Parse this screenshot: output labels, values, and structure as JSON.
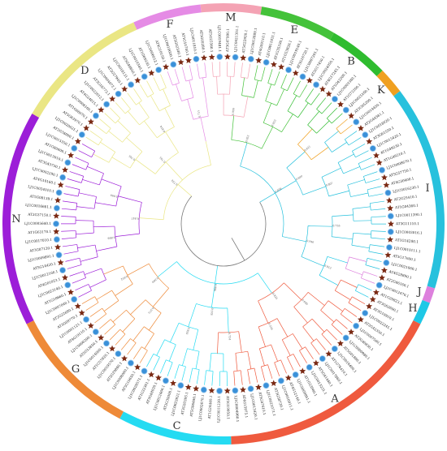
{
  "groups": [
    {
      "letter": "M",
      "color": "#f4a3b4",
      "start": 354,
      "end": 10
    },
    {
      "letter": "E",
      "color": "#44c23a",
      "start": 10,
      "end": 30
    },
    {
      "letter": "B",
      "color": "#2fbc2f",
      "start": 30,
      "end": 46
    },
    {
      "letter": "K",
      "color": "#f0a020",
      "start": 46,
      "end": 53
    },
    {
      "letter": "I",
      "color": "#27c1dd",
      "start": 53,
      "end": 107
    },
    {
      "letter": "J",
      "color": "#dd80dd",
      "start": 107,
      "end": 111
    },
    {
      "letter": "H",
      "color": "#1ec8e6",
      "start": 111,
      "end": 117
    },
    {
      "letter": "A",
      "color": "#ef5a3e",
      "start": 117,
      "end": 178
    },
    {
      "letter": "C",
      "color": "#25dbf2",
      "start": 178,
      "end": 208
    },
    {
      "letter": "G",
      "color": "#ee8a38",
      "start": 208,
      "end": 243
    },
    {
      "letter": "N",
      "color": "#9c1ed8",
      "start": 243,
      "end": 300
    },
    {
      "letter": "D",
      "color": "#eae684",
      "start": 300,
      "end": 336
    },
    {
      "letter": "F",
      "color": "#e58be5",
      "start": 336,
      "end": 354
    }
  ],
  "leaves": [
    {
      "name": "AT5G25560.1",
      "marker": "star"
    },
    {
      "name": "LJ1C0019481.1",
      "marker": "circle"
    },
    {
      "name": "AT3G47990.1",
      "marker": "star"
    },
    {
      "name": "LJ1C0021301.1",
      "marker": "circle"
    },
    {
      "name": "AT5G22920.1",
      "marker": "star"
    },
    {
      "name": "LJ1C0012889.1",
      "marker": "circle"
    },
    {
      "name": "AT4G09110.1",
      "marker": "star"
    },
    {
      "name": "LJ1C0011031.1",
      "marker": "circle"
    },
    {
      "name": "AT1G35330.1",
      "marker": "star"
    },
    {
      "name": "AT1G53820.1",
      "marker": "star"
    },
    {
      "name": "LJ1C0019140.1",
      "marker": "circle"
    },
    {
      "name": "AT3G16720.1",
      "marker": "star"
    },
    {
      "name": "LJ1C0007201.1",
      "marker": "circle"
    },
    {
      "name": "AT2G17450.1",
      "marker": "star"
    },
    {
      "name": "LJ1C0024050.1",
      "marker": "circle"
    },
    {
      "name": "AT4G17245.1",
      "marker": "star"
    },
    {
      "name": "AT5G42200.1",
      "marker": "star"
    },
    {
      "name": "LJ1C0003380.1",
      "marker": "circle"
    },
    {
      "name": "AT1G72200.1",
      "marker": "star"
    },
    {
      "name": "LJ1C0025160.1",
      "marker": "circle"
    },
    {
      "name": "AT3G05200.1",
      "marker": "star"
    },
    {
      "name": "LJ1C0014450.1",
      "marker": "circle"
    },
    {
      "name": "AT2G44581.1",
      "marker": "star"
    },
    {
      "name": "LJ1C0018020.1",
      "marker": "circle"
    },
    {
      "name": "AT3G61550.1",
      "marker": "star"
    },
    {
      "name": "LJ1C0015420.1",
      "marker": "circle"
    },
    {
      "name": "AT1G49230.1",
      "marker": "star"
    },
    {
      "name": "AT1G49210.1",
      "marker": "star"
    },
    {
      "name": "LJ1C0008670.1",
      "marker": "circle"
    },
    {
      "name": "AT5G57750.1",
      "marker": "star"
    },
    {
      "name": "AT4G30400.1",
      "marker": "star"
    },
    {
      "name": "LJ1C0016230.1",
      "marker": "circle"
    },
    {
      "name": "AT2G25410.1",
      "marker": "star"
    },
    {
      "name": "AT1G04360.1",
      "marker": "star"
    },
    {
      "name": "LJ1C0011390.1",
      "marker": "circle"
    },
    {
      "name": "AT3G11110.1",
      "marker": "star"
    },
    {
      "name": "LJ1C0003016.1",
      "marker": "circle"
    },
    {
      "name": "AT1G14200.1",
      "marker": "star"
    },
    {
      "name": "LJ1C0010111.1",
      "marker": "circle"
    },
    {
      "name": "AT5G17600.1",
      "marker": "star"
    },
    {
      "name": "LJ1C0021060.1",
      "marker": "circle"
    },
    {
      "name": "AT4G28890.1",
      "marker": "star"
    },
    {
      "name": "AT2G46160.1",
      "marker": "star"
    },
    {
      "name": "LJ1C0012470.1",
      "marker": "circle"
    },
    {
      "name": "AT1G20823.1",
      "marker": "star"
    },
    {
      "name": "AT3G62690.1",
      "marker": "star"
    },
    {
      "name": "AT3G10910.1",
      "marker": "star"
    },
    {
      "name": "LJ1C0022241.1",
      "marker": "circle"
    },
    {
      "name": "AT2G42350.1",
      "marker": "star"
    },
    {
      "name": "LJ1C0007580.1",
      "marker": "circle"
    },
    {
      "name": "AT2G40830.1",
      "marker": "star"
    },
    {
      "name": "LJ1C0000980.1",
      "marker": "circle"
    },
    {
      "name": "AT5G01880.1",
      "marker": "star"
    },
    {
      "name": "LJ1C0016400.1",
      "marker": "circle"
    },
    {
      "name": "AT1G76410.1",
      "marker": "star"
    },
    {
      "name": "LJ1C0017860.1",
      "marker": "circle"
    },
    {
      "name": "AT5G41440.1",
      "marker": "star"
    },
    {
      "name": "LJ1C0013231.1",
      "marker": "circle"
    },
    {
      "name": "AT1G23980.1",
      "marker": "star"
    },
    {
      "name": "LJ1C0009951.1",
      "marker": "circle"
    },
    {
      "name": "AT4G12140.1",
      "marker": "star"
    },
    {
      "name": "LJ1C0016011.1",
      "marker": "circle"
    },
    {
      "name": "AT3G58720.1",
      "marker": "star"
    },
    {
      "name": "LJ1C0021071.1",
      "marker": "circle"
    },
    {
      "name": "AT5G47610.1",
      "marker": "star"
    },
    {
      "name": "LJ1C0013420.1",
      "marker": "circle"
    },
    {
      "name": "AT4G15975.1",
      "marker": "star"
    },
    {
      "name": "LJ1C0004960.1",
      "marker": "circle"
    },
    {
      "name": "AT3G19950.1",
      "marker": "star"
    },
    {
      "name": "LJ1C0011230.1",
      "marker": "circle"
    },
    {
      "name": "AT1G24440.1",
      "marker": "star"
    },
    {
      "name": "LJ1C0002670.1",
      "marker": "circle"
    },
    {
      "name": "AT5G06490.1",
      "marker": "star"
    },
    {
      "name": "AT3G20395.1",
      "marker": "star"
    },
    {
      "name": "LJ1C0023931.1",
      "marker": "circle"
    },
    {
      "name": "AT2G35000.1",
      "marker": "star"
    },
    {
      "name": "LJ1C0012460.1",
      "marker": "circle"
    },
    {
      "name": "AT3G48030.1",
      "marker": "star"
    },
    {
      "name": "AT1G32361.1",
      "marker": "star"
    },
    {
      "name": "LJ1C0020571.1",
      "marker": "circle"
    },
    {
      "name": "AT5G10650.1",
      "marker": "star"
    },
    {
      "name": "LJ1C0008080.1",
      "marker": "circle"
    },
    {
      "name": "AT2G29840.1",
      "marker": "star"
    },
    {
      "name": "LJ1C0019570.1",
      "marker": "circle"
    },
    {
      "name": "AT1G57820.1",
      "marker": "star"
    },
    {
      "name": "LJ1C0014000.1",
      "marker": "circle"
    },
    {
      "name": "AT5G13850.1",
      "marker": "star"
    },
    {
      "name": "LJ1C0006200.1",
      "marker": "circle"
    },
    {
      "name": "AT4G19110.1",
      "marker": "star"
    },
    {
      "name": "LJ1C0001121.1",
      "marker": "circle"
    },
    {
      "name": "AT3G09770.1",
      "marker": "star"
    },
    {
      "name": "AT2G22680.1",
      "marker": "star"
    },
    {
      "name": "LJ1C0007040.1",
      "marker": "circle"
    },
    {
      "name": "AT1G18660.1",
      "marker": "star"
    },
    {
      "name": "LJ1C0023140.1",
      "marker": "circle"
    },
    {
      "name": "AT4G01023.1",
      "marker": "star"
    },
    {
      "name": "LJ1C0012160.1",
      "marker": "circle"
    },
    {
      "name": "AT5G14420.1",
      "marker": "star"
    },
    {
      "name": "LJ1C0009891.1",
      "marker": "circle"
    },
    {
      "name": "AT3G07120.1",
      "marker": "star"
    },
    {
      "name": "LJ1C0017010.1",
      "marker": "circle"
    },
    {
      "name": "AT1G63170.1",
      "marker": "star"
    },
    {
      "name": "LJ1C0005640.1",
      "marker": "circle"
    },
    {
      "name": "AT2G37150.1",
      "marker": "star"
    },
    {
      "name": "LJ1C0016661.1",
      "marker": "circle"
    },
    {
      "name": "AT5G08139.1",
      "marker": "star"
    },
    {
      "name": "LJ1C0024010.1",
      "marker": "circle"
    },
    {
      "name": "AT4G10160.1",
      "marker": "star"
    },
    {
      "name": "LJ1C0002290.1",
      "marker": "circle"
    },
    {
      "name": "AT3G43750.1",
      "marker": "star"
    },
    {
      "name": "LJ1C0013010.1",
      "marker": "circle"
    },
    {
      "name": "AT1G80400.1",
      "marker": "star"
    },
    {
      "name": "LJ1C0015350.1",
      "marker": "circle"
    },
    {
      "name": "AT2G34000.1",
      "marker": "star"
    },
    {
      "name": "LJ1C0020621.1",
      "marker": "circle"
    },
    {
      "name": "AT5G63970.1",
      "marker": "star"
    },
    {
      "name": "AT1G68070.1",
      "marker": "star"
    },
    {
      "name": "LJ1C0008160.1",
      "marker": "circle"
    },
    {
      "name": "AT4G24015.1",
      "marker": "star"
    },
    {
      "name": "LJ1C0022012.1",
      "marker": "circle"
    },
    {
      "name": "AT3G18773.1",
      "marker": "star"
    },
    {
      "name": "LJ1C0004072.1",
      "marker": "circle"
    },
    {
      "name": "AT2G27940.1",
      "marker": "star"
    },
    {
      "name": "LJ1C0018131.1",
      "marker": "circle"
    },
    {
      "name": "AT5G46650.1",
      "marker": "star"
    },
    {
      "name": "LJ1C0010340.1",
      "marker": "circle"
    },
    {
      "name": "AT1G69330.1",
      "marker": "star"
    },
    {
      "name": "LJ1C0006012.1",
      "marker": "circle"
    },
    {
      "name": "AT4G10150.1",
      "marker": "star"
    },
    {
      "name": "LJ1C0019020.1",
      "marker": "circle"
    },
    {
      "name": "AT3G02340.1",
      "marker": "star"
    },
    {
      "name": "AT1G10740.1",
      "marker": "star"
    },
    {
      "name": "LJ1C0011810.1",
      "marker": "circle"
    },
    {
      "name": "AT5G05280.1",
      "marker": "star"
    }
  ],
  "bootstrap": [
    "0.999",
    "0.955",
    "0.621",
    "0.807",
    "0.755",
    "0.912",
    "0.680",
    "0.559",
    "0.734",
    "0.826",
    "0.973",
    "0.602",
    "0.888",
    "0.999",
    "0.765",
    "0.814",
    "0.711",
    "0.953",
    "0.690",
    "0.946",
    "0.820",
    "0.578",
    "0.999",
    "0.847",
    "0.745",
    "0.656",
    "0.996",
    "0.734",
    "0.808",
    "0.900",
    "0.666",
    "0.727",
    "0.980",
    "0.912",
    "0.999",
    "0.540"
  ],
  "colors": {
    "star": "#7a2a14",
    "circle": "#3a90d8",
    "circle_stroke": "#8fc4ee",
    "center_branch": "#777777"
  }
}
